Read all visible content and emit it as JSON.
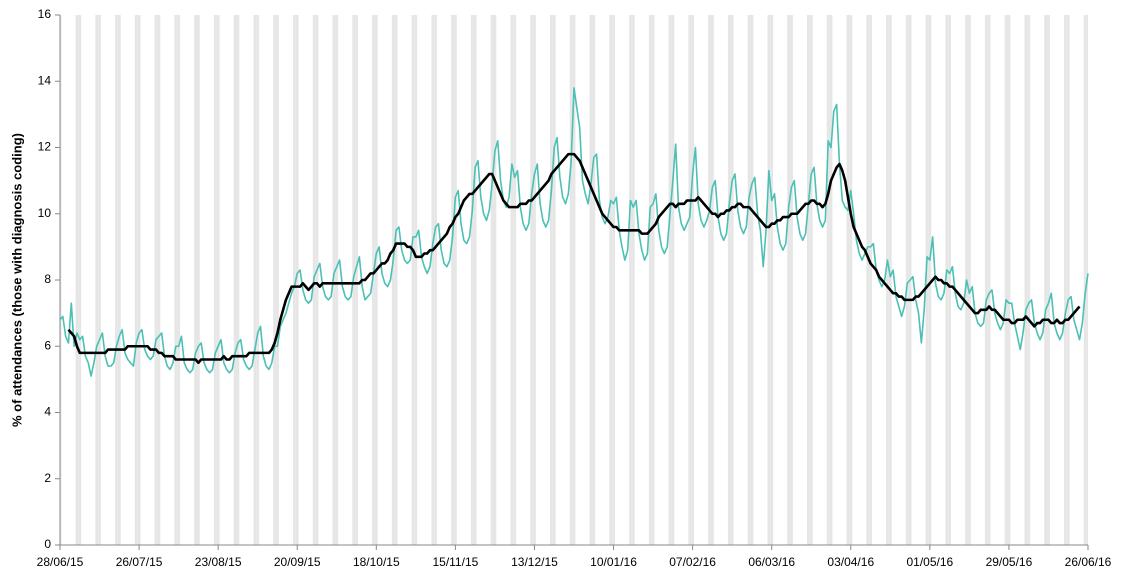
{
  "chart_data": {
    "type": "line",
    "ylabel": "% of attendances (those with diagnosis coding)",
    "ylim": [
      0,
      16
    ],
    "yticks": [
      0,
      2,
      4,
      6,
      8,
      10,
      12,
      14,
      16
    ],
    "grid": false,
    "weekend_color": "#e6e6e6",
    "categories": [
      "28/06/15",
      null,
      null,
      null,
      null,
      null,
      null,
      null,
      null,
      null,
      null,
      null,
      null,
      null,
      null,
      null,
      null,
      null,
      null,
      null,
      null,
      null,
      null,
      null,
      null,
      null,
      null,
      null,
      "26/07/15",
      null,
      null,
      null,
      null,
      null,
      null,
      null,
      null,
      null,
      null,
      null,
      null,
      null,
      null,
      null,
      null,
      null,
      null,
      null,
      null,
      null,
      null,
      null,
      null,
      null,
      null,
      null,
      "23/08/15",
      null,
      null,
      null,
      null,
      null,
      null,
      null,
      null,
      null,
      null,
      null,
      null,
      null,
      null,
      null,
      null,
      null,
      null,
      null,
      null,
      null,
      null,
      null,
      null,
      null,
      null,
      null,
      "20/09/15",
      null,
      null,
      null,
      null,
      null,
      null,
      null,
      null,
      null,
      null,
      null,
      null,
      null,
      null,
      null,
      null,
      null,
      null,
      null,
      null,
      null,
      null,
      null,
      null,
      null,
      null,
      null,
      "18/10/15",
      null,
      null,
      null,
      null,
      null,
      null,
      null,
      null,
      null,
      null,
      null,
      null,
      null,
      null,
      null,
      null,
      null,
      null,
      null,
      null,
      null,
      null,
      null,
      null,
      null,
      null,
      null,
      "15/11/15",
      null,
      null,
      null,
      null,
      null,
      null,
      null,
      null,
      null,
      null,
      null,
      null,
      null,
      null,
      null,
      null,
      null,
      null,
      null,
      null,
      null,
      null,
      null,
      null,
      null,
      null,
      null,
      "13/12/15",
      null,
      null,
      null,
      null,
      null,
      null,
      null,
      null,
      null,
      null,
      null,
      null,
      null,
      null,
      null,
      null,
      null,
      null,
      null,
      null,
      null,
      null,
      null,
      null,
      null,
      null,
      null,
      "10/01/16",
      null,
      null,
      null,
      null,
      null,
      null,
      null,
      null,
      null,
      null,
      null,
      null,
      null,
      null,
      null,
      null,
      null,
      null,
      null,
      null,
      null,
      null,
      null,
      null,
      null,
      null,
      null,
      "07/02/16",
      null,
      null,
      null,
      null,
      null,
      null,
      null,
      null,
      null,
      null,
      null,
      null,
      null,
      null,
      null,
      null,
      null,
      null,
      null,
      null,
      null,
      null,
      null,
      null,
      null,
      null,
      null,
      "06/03/16",
      null,
      null,
      null,
      null,
      null,
      null,
      null,
      null,
      null,
      null,
      null,
      null,
      null,
      null,
      null,
      null,
      null,
      null,
      null,
      null,
      null,
      null,
      null,
      null,
      null,
      null,
      null,
      "03/04/16",
      null,
      null,
      null,
      null,
      null,
      null,
      null,
      null,
      null,
      null,
      null,
      null,
      null,
      null,
      null,
      null,
      null,
      null,
      null,
      null,
      null,
      null,
      null,
      null,
      null,
      null,
      null,
      "01/05/16",
      null,
      null,
      null,
      null,
      null,
      null,
      null,
      null,
      null,
      null,
      null,
      null,
      null,
      null,
      null,
      null,
      null,
      null,
      null,
      null,
      null,
      null,
      null,
      null,
      null,
      null,
      null,
      "29/05/16",
      null,
      null,
      null,
      null,
      null,
      null,
      null,
      null,
      null,
      null,
      null,
      null,
      null,
      null,
      null,
      null,
      null,
      null,
      null,
      null,
      null,
      null,
      null,
      null,
      null,
      null,
      null,
      "26/06/16"
    ],
    "series": [
      {
        "color": "#4cc0b5",
        "width": 1.6,
        "values": [
          6.8,
          6.9,
          6.3,
          6.1,
          7.3,
          6.0,
          6.4,
          6.2,
          6.3,
          5.7,
          5.5,
          5.1,
          5.5,
          6.0,
          6.2,
          6.4,
          5.7,
          5.4,
          5.4,
          5.5,
          6.0,
          6.3,
          6.5,
          5.8,
          5.6,
          5.5,
          5.4,
          6.1,
          6.4,
          6.5,
          5.9,
          5.7,
          5.6,
          5.7,
          6.2,
          6.3,
          6.4,
          5.7,
          5.4,
          5.3,
          5.5,
          6.0,
          6.0,
          6.3,
          5.5,
          5.3,
          5.2,
          5.3,
          5.8,
          6.0,
          6.1,
          5.5,
          5.3,
          5.2,
          5.3,
          5.8,
          6.0,
          6.2,
          5.5,
          5.3,
          5.2,
          5.3,
          5.8,
          6.1,
          6.2,
          5.6,
          5.4,
          5.3,
          5.4,
          5.9,
          6.4,
          6.6,
          5.7,
          5.4,
          5.3,
          5.5,
          6.0,
          6.0,
          6.6,
          6.8,
          7.0,
          7.3,
          7.6,
          7.8,
          8.2,
          8.3,
          7.7,
          7.4,
          7.3,
          7.4,
          8.1,
          8.3,
          8.5,
          7.8,
          7.5,
          7.4,
          7.5,
          8.2,
          8.4,
          8.6,
          7.8,
          7.5,
          7.4,
          7.5,
          8.1,
          8.4,
          8.7,
          7.8,
          7.4,
          7.5,
          7.6,
          8.2,
          8.8,
          9.0,
          8.2,
          7.9,
          7.8,
          8.0,
          8.6,
          9.5,
          9.6,
          8.9,
          8.6,
          8.5,
          8.6,
          9.3,
          9.3,
          9.5,
          8.7,
          8.4,
          8.2,
          8.4,
          9.1,
          9.6,
          9.7,
          8.9,
          8.5,
          8.4,
          8.6,
          9.3,
          10.5,
          10.7,
          9.7,
          9.2,
          9.1,
          9.3,
          10.1,
          11.4,
          11.6,
          10.5,
          10.0,
          9.8,
          10.1,
          10.9,
          11.9,
          12.2,
          11.0,
          10.4,
          10.2,
          10.5,
          11.5,
          11.1,
          11.3,
          10.2,
          9.7,
          9.5,
          9.7,
          10.6,
          11.2,
          11.5,
          10.3,
          9.8,
          9.6,
          9.8,
          10.7,
          12.0,
          12.3,
          11.1,
          10.5,
          10.3,
          10.6,
          11.6,
          13.8,
          13.2,
          12.6,
          11.0,
          10.6,
          10.3,
          10.9,
          11.7,
          11.8,
          10.4,
          9.9,
          9.7,
          9.9,
          10.4,
          10.3,
          10.5,
          9.5,
          9.0,
          8.6,
          8.9,
          10.4,
          10.2,
          10.4,
          9.4,
          8.9,
          8.6,
          8.8,
          10.2,
          10.3,
          10.6,
          9.5,
          9.0,
          8.8,
          9.0,
          10.0,
          11.0,
          12.1,
          10.2,
          9.7,
          9.5,
          9.7,
          9.9,
          11.2,
          12.0,
          10.3,
          9.8,
          9.6,
          9.8,
          10.1,
          10.8,
          11.0,
          9.9,
          9.4,
          9.2,
          9.4,
          10.3,
          11.0,
          11.2,
          10.1,
          9.6,
          9.4,
          9.6,
          10.5,
          10.9,
          11.1,
          10.0,
          9.5,
          8.4,
          9.5,
          11.3,
          10.4,
          10.6,
          9.6,
          9.1,
          8.9,
          9.1,
          10.2,
          10.8,
          11.0,
          9.9,
          9.4,
          9.2,
          9.4,
          10.3,
          11.2,
          11.4,
          10.3,
          9.8,
          9.6,
          9.8,
          12.2,
          12.0,
          13.1,
          13.3,
          11.5,
          10.4,
          10.2,
          10.1,
          10.7,
          10.0,
          9.2,
          8.8,
          8.6,
          8.8,
          9.0,
          9.0,
          9.1,
          8.3,
          8.0,
          7.8,
          8.0,
          8.6,
          8.1,
          8.3,
          7.5,
          7.2,
          6.9,
          7.2,
          7.9,
          8.0,
          8.1,
          7.4,
          7.0,
          6.1,
          7.1,
          8.7,
          8.6,
          9.3,
          7.9,
          7.5,
          7.4,
          7.6,
          8.3,
          8.2,
          8.4,
          7.6,
          7.2,
          7.1,
          7.3,
          8.0,
          7.6,
          7.8,
          7.0,
          6.7,
          6.6,
          6.7,
          7.4,
          7.6,
          7.7,
          7.0,
          6.7,
          6.5,
          6.7,
          7.4,
          7.3,
          7.3,
          6.7,
          6.3,
          5.9,
          6.4,
          7.1,
          7.3,
          7.4,
          6.7,
          6.4,
          6.2,
          6.4,
          7.1,
          7.3,
          7.6,
          6.7,
          6.4,
          6.2,
          6.4,
          7.0,
          7.4,
          7.5,
          6.8,
          6.5,
          6.2,
          6.7,
          7.6,
          8.2
        ]
      },
      {
        "color": "#000000",
        "width": 2.6,
        "values": [
          null,
          null,
          null,
          6.5,
          6.4,
          6.3,
          6.0,
          5.8,
          5.8,
          5.8,
          5.8,
          5.8,
          5.8,
          5.8,
          5.8,
          5.8,
          5.8,
          5.9,
          5.9,
          5.9,
          5.9,
          5.9,
          5.9,
          5.9,
          6.0,
          6.0,
          6.0,
          6.0,
          6.0,
          6.0,
          6.0,
          6.0,
          5.9,
          5.9,
          5.9,
          5.8,
          5.8,
          5.7,
          5.7,
          5.7,
          5.7,
          5.6,
          5.6,
          5.6,
          5.6,
          5.6,
          5.6,
          5.6,
          5.6,
          5.5,
          5.6,
          5.6,
          5.6,
          5.6,
          5.6,
          5.6,
          5.6,
          5.6,
          5.7,
          5.6,
          5.6,
          5.7,
          5.7,
          5.7,
          5.7,
          5.7,
          5.7,
          5.8,
          5.8,
          5.8,
          5.8,
          5.8,
          5.8,
          5.8,
          5.8,
          5.9,
          6.1,
          6.4,
          6.8,
          7.1,
          7.4,
          7.6,
          7.8,
          7.8,
          7.8,
          7.8,
          7.9,
          7.8,
          7.7,
          7.8,
          7.9,
          7.9,
          7.8,
          7.9,
          7.9,
          7.9,
          7.9,
          7.9,
          7.9,
          7.9,
          7.9,
          7.9,
          7.9,
          7.9,
          7.9,
          7.9,
          7.9,
          8.0,
          8.0,
          8.1,
          8.2,
          8.2,
          8.3,
          8.4,
          8.5,
          8.5,
          8.6,
          8.8,
          8.9,
          9.1,
          9.1,
          9.1,
          9.1,
          9.0,
          9.0,
          8.9,
          8.7,
          8.7,
          8.7,
          8.8,
          8.8,
          8.9,
          8.9,
          9.0,
          9.1,
          9.2,
          9.3,
          9.4,
          9.6,
          9.7,
          9.9,
          10.0,
          10.2,
          10.4,
          10.5,
          10.6,
          10.6,
          10.7,
          10.8,
          10.9,
          11.0,
          11.1,
          11.2,
          11.2,
          11.0,
          10.8,
          10.6,
          10.4,
          10.3,
          10.2,
          10.2,
          10.2,
          10.2,
          10.3,
          10.3,
          10.3,
          10.4,
          10.4,
          10.5,
          10.6,
          10.7,
          10.8,
          10.9,
          11.0,
          11.2,
          11.3,
          11.4,
          11.5,
          11.6,
          11.7,
          11.8,
          11.8,
          11.8,
          11.7,
          11.6,
          11.4,
          11.2,
          11.0,
          10.8,
          10.6,
          10.4,
          10.2,
          10.0,
          9.9,
          9.8,
          9.7,
          9.6,
          9.6,
          9.5,
          9.5,
          9.5,
          9.5,
          9.5,
          9.5,
          9.5,
          9.5,
          9.4,
          9.4,
          9.4,
          9.5,
          9.6,
          9.7,
          9.9,
          10.0,
          10.1,
          10.2,
          10.3,
          10.3,
          10.2,
          10.3,
          10.3,
          10.3,
          10.4,
          10.4,
          10.4,
          10.4,
          10.5,
          10.4,
          10.3,
          10.2,
          10.1,
          10.0,
          10.0,
          9.9,
          10.0,
          10.0,
          10.1,
          10.1,
          10.2,
          10.2,
          10.3,
          10.3,
          10.2,
          10.2,
          10.2,
          10.1,
          10.0,
          9.9,
          9.8,
          9.7,
          9.6,
          9.6,
          9.7,
          9.7,
          9.8,
          9.8,
          9.9,
          9.9,
          9.9,
          10.0,
          10.0,
          10.0,
          10.1,
          10.2,
          10.3,
          10.3,
          10.4,
          10.4,
          10.3,
          10.3,
          10.2,
          10.3,
          10.6,
          11.0,
          11.2,
          11.4,
          11.5,
          11.3,
          11.0,
          10.5,
          10.0,
          9.6,
          9.4,
          9.2,
          9.0,
          8.9,
          8.7,
          8.5,
          8.4,
          8.3,
          8.1,
          8.0,
          7.9,
          7.8,
          7.7,
          7.6,
          7.6,
          7.5,
          7.5,
          7.4,
          7.4,
          7.4,
          7.4,
          7.5,
          7.5,
          7.6,
          7.7,
          7.8,
          7.9,
          8.0,
          8.1,
          8.0,
          8.0,
          7.9,
          7.9,
          7.8,
          7.8,
          7.7,
          7.6,
          7.5,
          7.4,
          7.3,
          7.2,
          7.1,
          7.0,
          7.0,
          7.1,
          7.1,
          7.1,
          7.2,
          7.1,
          7.1,
          7.0,
          6.9,
          6.8,
          6.8,
          6.8,
          6.7,
          6.7,
          6.8,
          6.8,
          6.8,
          6.9,
          6.8,
          6.7,
          6.6,
          6.7,
          6.7,
          6.8,
          6.8,
          6.8,
          6.7,
          6.7,
          6.8,
          6.7,
          6.7,
          6.8,
          6.8,
          6.9,
          7.0,
          7.1,
          7.2,
          null,
          null,
          null
        ]
      }
    ]
  }
}
